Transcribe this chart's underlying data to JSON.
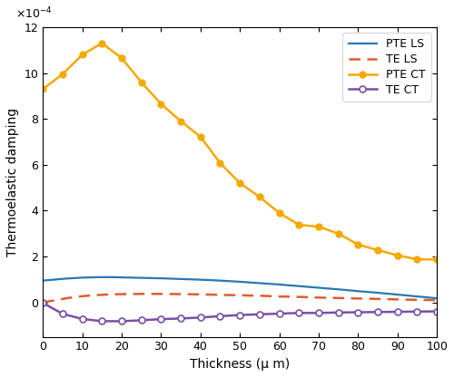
{
  "title": "",
  "xlabel": "Thickness (μ m)",
  "ylabel": "Thermoelastic damping",
  "xlim": [
    0,
    100
  ],
  "ylim": [
    -0.00015,
    0.0012
  ],
  "ytick_vals": [
    0,
    0.0002,
    0.0004,
    0.0006,
    0.0008,
    0.001,
    0.0012
  ],
  "ytick_labels": [
    "0",
    "2",
    "4",
    "6",
    "8",
    "10",
    "12"
  ],
  "xticks": [
    0,
    10,
    20,
    30,
    40,
    50,
    60,
    70,
    80,
    90,
    100
  ],
  "pte_ls_x": [
    0,
    2,
    4,
    6,
    8,
    10,
    12,
    14,
    16,
    18,
    20,
    25,
    30,
    35,
    40,
    45,
    50,
    55,
    60,
    65,
    70,
    75,
    80,
    85,
    90,
    95,
    100
  ],
  "pte_ls_y": [
    9.5e-05,
    9.8e-05,
    0.000101,
    0.000104,
    0.000106,
    0.000108,
    0.000109,
    0.00011,
    0.00011,
    0.00011,
    0.000109,
    0.000107,
    0.000105,
    0.000102,
    9.9e-05,
    9.5e-05,
    9e-05,
    8.4e-05,
    7.8e-05,
    7.1e-05,
    6.4e-05,
    5.7e-05,
    4.9e-05,
    4.2e-05,
    3.4e-05,
    2.6e-05,
    1.8e-05
  ],
  "te_ls_x": [
    0,
    2,
    4,
    6,
    8,
    10,
    12,
    14,
    16,
    18,
    20,
    25,
    30,
    35,
    40,
    45,
    50,
    55,
    60,
    65,
    70,
    75,
    80,
    85,
    90,
    95,
    100
  ],
  "te_ls_y": [
    1e-06,
    6e-06,
    1.2e-05,
    1.8e-05,
    2.3e-05,
    2.7e-05,
    3e-05,
    3.2e-05,
    3.4e-05,
    3.5e-05,
    3.6e-05,
    3.7e-05,
    3.7e-05,
    3.6e-05,
    3.5e-05,
    3.3e-05,
    3.1e-05,
    2.9e-05,
    2.6e-05,
    2.4e-05,
    2.1e-05,
    1.9e-05,
    1.7e-05,
    1.5e-05,
    1.3e-05,
    1.1e-05,
    1e-05
  ],
  "pte_ct_x": [
    0,
    5,
    10,
    15,
    20,
    25,
    30,
    35,
    40,
    45,
    50,
    55,
    60,
    65,
    70,
    75,
    80,
    85,
    90,
    95,
    100
  ],
  "pte_ct_y": [
    0.00093,
    0.000995,
    0.00108,
    0.00113,
    0.001065,
    0.00096,
    0.000865,
    0.00079,
    0.000722,
    0.000607,
    0.00052,
    0.00046,
    0.00039,
    0.000338,
    0.00033,
    0.0003,
    0.000252,
    0.000228,
    0.000205,
    0.000188,
    0.000187
  ],
  "te_ct_x": [
    0,
    5,
    10,
    15,
    20,
    25,
    30,
    35,
    40,
    45,
    50,
    55,
    60,
    65,
    70,
    75,
    80,
    85,
    90,
    95,
    100
  ],
  "te_ct_y": [
    -2e-06,
    -5e-05,
    -7.2e-05,
    -8.2e-05,
    -8.2e-05,
    -7.8e-05,
    -7.3e-05,
    -7e-05,
    -6.6e-05,
    -6e-05,
    -5.5e-05,
    -5.2e-05,
    -4.9e-05,
    -4.6e-05,
    -4.6e-05,
    -4.4e-05,
    -4.3e-05,
    -4.2e-05,
    -4.1e-05,
    -4e-05,
    -3.9e-05
  ],
  "pte_ls_color": "#2878b5",
  "te_ls_color": "#e05c2e",
  "pte_ct_color": "#f5a800",
  "te_ct_color": "#7b4fa6",
  "legend_labels": [
    "PTE LS",
    "TE LS",
    "PTE CT",
    "TE CT"
  ],
  "figsize": [
    5.0,
    4.16
  ],
  "dpi": 100
}
